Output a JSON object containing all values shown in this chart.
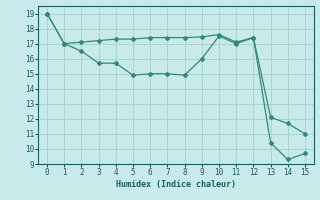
{
  "xlabel": "Humidex (Indice chaleur)",
  "xlim": [
    -0.5,
    15.5
  ],
  "ylim": [
    9,
    19.5
  ],
  "xticks": [
    0,
    1,
    2,
    3,
    4,
    5,
    6,
    7,
    8,
    9,
    10,
    11,
    12,
    13,
    14,
    15
  ],
  "yticks": [
    9,
    10,
    11,
    12,
    13,
    14,
    15,
    16,
    17,
    18,
    19
  ],
  "line1_x": [
    0,
    1,
    2,
    3,
    4,
    5,
    6,
    7,
    8,
    9,
    10,
    11,
    12,
    13,
    14,
    15
  ],
  "line1_y": [
    19,
    17,
    16.5,
    15.7,
    15.7,
    14.9,
    15.0,
    15.0,
    14.9,
    16.0,
    17.5,
    17.0,
    17.4,
    10.4,
    9.3,
    9.7
  ],
  "line2_x": [
    0,
    1,
    2,
    3,
    4,
    5,
    6,
    7,
    8,
    9,
    10,
    11,
    12,
    13,
    14,
    15
  ],
  "line2_y": [
    19,
    17,
    17.1,
    17.2,
    17.3,
    17.3,
    17.4,
    17.4,
    17.4,
    17.45,
    17.6,
    17.1,
    17.4,
    12.1,
    11.7,
    11.0
  ],
  "line_color": "#2e8b7a",
  "marker": "D",
  "marker_size": 2,
  "bg_color": "#c8eaea",
  "grid_color": "#aad4d4",
  "font_color": "#1a5f5f",
  "tick_fontsize": 5.5,
  "xlabel_fontsize": 6.0
}
